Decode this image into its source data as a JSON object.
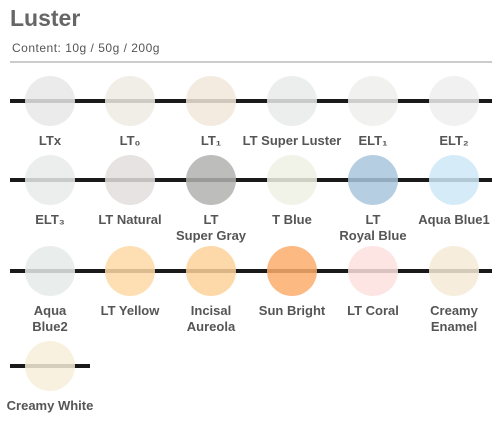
{
  "header": {
    "title": "Luster",
    "subtitle": "Content: 10g / 50g / 200g"
  },
  "rows": [
    {
      "swatches": [
        {
          "label": [
            "LTx"
          ],
          "color": "#e6e8e6"
        },
        {
          "label": [
            "LT₀"
          ],
          "color": "#efebe3"
        },
        {
          "label": [
            "LT₁"
          ],
          "color": "#f1e8d9"
        },
        {
          "label": [
            "LT Super Luster"
          ],
          "color": "#e8ebe9"
        },
        {
          "label": [
            "ELT₁"
          ],
          "color": "#eeefec"
        },
        {
          "label": [
            "ELT₂"
          ],
          "color": "#efefef"
        }
      ]
    },
    {
      "swatches": [
        {
          "label": [
            "ELT₃"
          ],
          "color": "#e7ebe9"
        },
        {
          "label": [
            "LT Natural"
          ],
          "color": "#e2dedd"
        },
        {
          "label": [
            "LT",
            "Super Gray"
          ],
          "color": "#b2b3b0"
        },
        {
          "label": [
            "T Blue"
          ],
          "color": "#eef1e4"
        },
        {
          "label": [
            "LT",
            "Royal Blue"
          ],
          "color": "#a9c5dd"
        },
        {
          "label": [
            "Aqua Blue1"
          ],
          "color": "#cfe7f7"
        }
      ]
    },
    {
      "swatches": [
        {
          "label": [
            "Aqua",
            "Blue2"
          ],
          "color": "#e5ebe9"
        },
        {
          "label": [
            "LT Yellow"
          ],
          "color": "#fdd9a6"
        },
        {
          "label": [
            "Incisal",
            "Aureola"
          ],
          "color": "#fdd29a"
        },
        {
          "label": [
            "Sun Bright"
          ],
          "color": "#fbad6c"
        },
        {
          "label": [
            "LT Coral"
          ],
          "color": "#fde1de"
        },
        {
          "label": [
            "Creamy",
            "Enamel"
          ],
          "color": "#f4ead6"
        }
      ]
    },
    {
      "swatches": [
        {
          "label": [
            "Creamy White"
          ],
          "color": "#f8eedb"
        }
      ]
    }
  ]
}
